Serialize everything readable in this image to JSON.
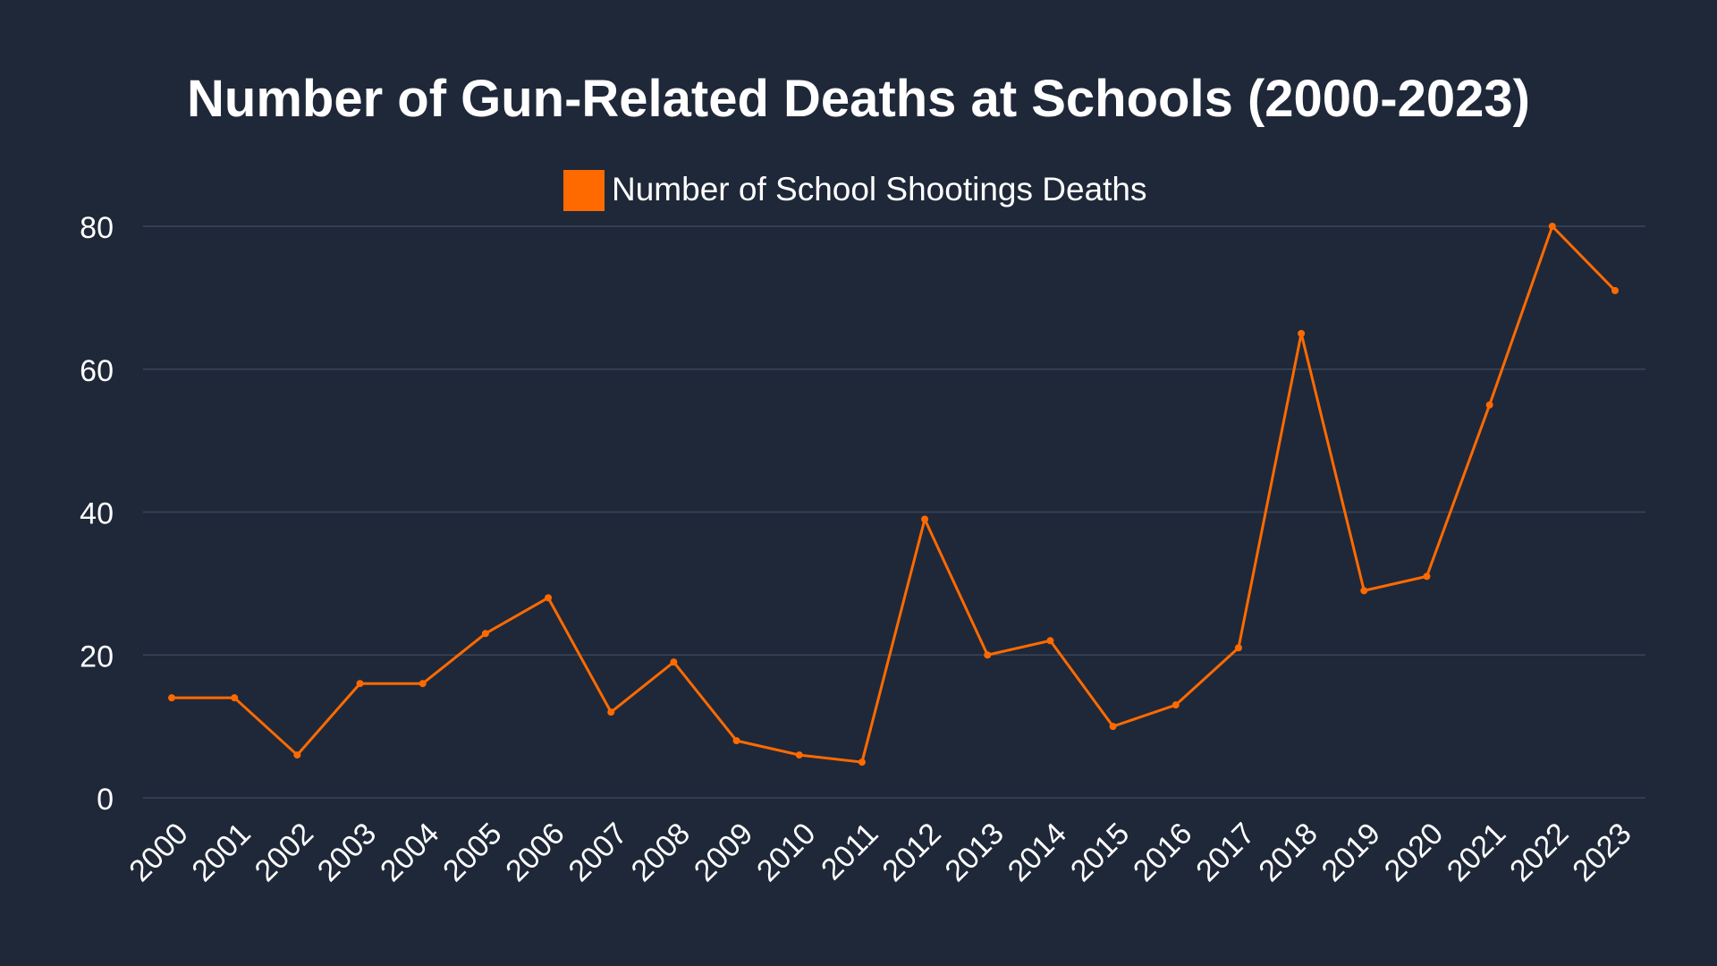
{
  "colors": {
    "background": "#1f2839",
    "series": "#ff6a00",
    "text": "#ffffff",
    "grid": "#3a4558"
  },
  "chart_data": {
    "type": "line",
    "title": "Number of Gun-Related Deaths at Schools (2000-2023)",
    "legend": {
      "position": "top-center"
    },
    "grid": true,
    "ylim": [
      0,
      80
    ],
    "yticks": [
      0,
      20,
      40,
      60,
      80
    ],
    "x": [
      "2000",
      "2001",
      "2002",
      "2003",
      "2004",
      "2005",
      "2006",
      "2007",
      "2008",
      "2009",
      "2010",
      "2011",
      "2012",
      "2013",
      "2014",
      "2015",
      "2016",
      "2017",
      "2018",
      "2019",
      "2020",
      "2021",
      "2022",
      "2023"
    ],
    "series": [
      {
        "name": "Number of School Shootings Deaths",
        "values": [
          14,
          14,
          6,
          16,
          16,
          23,
          28,
          12,
          19,
          8,
          6,
          5,
          39,
          20,
          22,
          10,
          13,
          21,
          65,
          29,
          31,
          55,
          80,
          71
        ]
      }
    ]
  }
}
